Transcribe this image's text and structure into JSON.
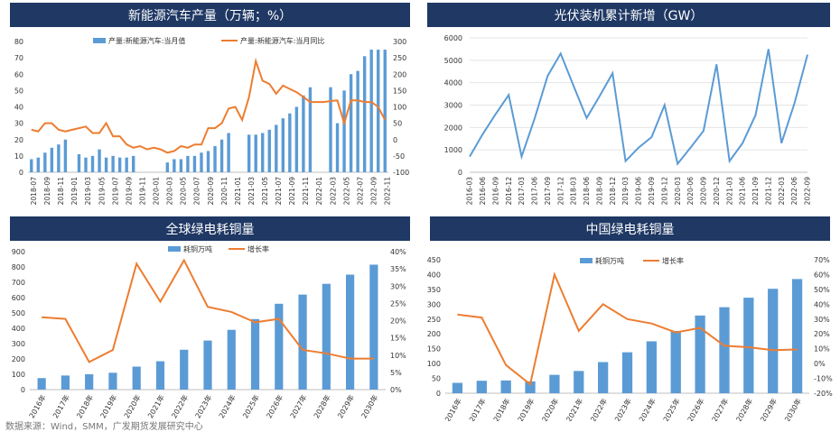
{
  "colors": {
    "bar": "#5b9bd5",
    "line": "#ed7d31",
    "banner": "#1f3864",
    "axis": "#bfbfbf"
  },
  "footer": "数据来源：Wind，SMM，广发期货发展研究中心",
  "chart_data": [
    {
      "type": "bar+line",
      "title": "新能源汽车产量（万辆；%）",
      "legend": [
        "产量:新能源汽车:当月值",
        "产量:新能源汽车:当月同比"
      ],
      "legend_position": "top",
      "x": [
        "2018-07",
        "2018-08",
        "2018-09",
        "2018-10",
        "2018-11",
        "2018-12",
        "2019-01",
        "2019-02",
        "2019-03",
        "2019-04",
        "2019-05",
        "2019-06",
        "2019-07",
        "2019-08",
        "2019-09",
        "2019-10",
        "2019-11",
        "2019-12",
        "2020-01",
        "2020-02",
        "2020-03",
        "2020-04",
        "2020-05",
        "2020-06",
        "2020-07",
        "2020-08",
        "2020-09",
        "2020-10",
        "2020-11",
        "2020-12",
        "2021-01",
        "2021-02",
        "2021-03",
        "2021-04",
        "2021-05",
        "2021-06",
        "2021-07",
        "2021-08",
        "2021-09",
        "2021-10",
        "2021-11",
        "2021-12",
        "2022-01",
        "2022-02",
        "2022-03",
        "2022-04",
        "2022-05",
        "2022-06",
        "2022-07",
        "2022-08",
        "2022-09",
        "2022-10",
        "2022-11"
      ],
      "x_tick_labels": [
        "2018-07",
        "2018-09",
        "2018-11",
        "2019-01",
        "2019-03",
        "2019-05",
        "2019-07",
        "2019-09",
        "2019-11",
        "2020-01",
        "2020-03",
        "2020-05",
        "2020-07",
        "2020-09",
        "2020-11",
        "2021-01",
        "2021-03",
        "2021-05",
        "2021-07",
        "2021-09",
        "2021-11",
        "2022-01",
        "2022-03",
        "2022-05",
        "2022-07",
        "2022-09",
        "2022-11"
      ],
      "bar_values": [
        8,
        9,
        12,
        15,
        17,
        20,
        null,
        11,
        9,
        10,
        14,
        9,
        10,
        9,
        9,
        10,
        null,
        null,
        null,
        null,
        6,
        8,
        8,
        10,
        10,
        12,
        13,
        16,
        20,
        24,
        null,
        null,
        23,
        23,
        24,
        26,
        29,
        33,
        36,
        40,
        47,
        52,
        null,
        null,
        52,
        30,
        50,
        60,
        62,
        71,
        75,
        75,
        75
      ],
      "line_values": [
        30,
        25,
        50,
        50,
        30,
        25,
        30,
        35,
        40,
        20,
        20,
        50,
        10,
        10,
        -15,
        -25,
        -20,
        -30,
        -25,
        -30,
        -40,
        -35,
        -20,
        -25,
        -15,
        -15,
        35,
        35,
        50,
        95,
        100,
        60,
        130,
        240,
        180,
        170,
        140,
        165,
        155,
        145,
        130,
        115,
        115,
        115,
        118,
        120,
        50,
        120,
        120,
        115,
        115,
        100,
        60
      ],
      "y_left_range": [
        0,
        80
      ],
      "y_left_ticks": [
        "0",
        "10",
        "20",
        "30",
        "40",
        "50",
        "60",
        "70",
        "80"
      ],
      "y_right_range": [
        -100,
        300
      ],
      "y_right_ticks": [
        "-100",
        "-50",
        "0",
        "50",
        "100",
        "150",
        "200",
        "250",
        "300"
      ],
      "grid": false
    },
    {
      "type": "line",
      "title": "光伏装机累计新增（GW）",
      "x": [
        "2016-03",
        "2016-06",
        "2016-09",
        "2016-12",
        "2017-03",
        "2017-06",
        "2017-09",
        "2017-12",
        "2018-03",
        "2018-06",
        "2018-09",
        "2018-12",
        "2019-03",
        "2019-06",
        "2019-09",
        "2019-12",
        "2020-03",
        "2020-06",
        "2020-09",
        "2020-12",
        "2021-03",
        "2021-06",
        "2021-09",
        "2021-12",
        "2022-03",
        "2022-06",
        "2022-09"
      ],
      "values": [
        700,
        1700,
        2600,
        3450,
        700,
        2400,
        4300,
        5300,
        3850,
        2420,
        3400,
        4420,
        500,
        1100,
        1570,
        3000,
        380,
        1100,
        1850,
        4820,
        500,
        1300,
        2550,
        5500,
        1300,
        3080,
        5250
      ],
      "y_range": [
        0,
        6000
      ],
      "y_ticks": [
        "0",
        "1000",
        "2000",
        "3000",
        "4000",
        "5000",
        "6000"
      ],
      "grid": true
    },
    {
      "type": "bar+line",
      "title": "全球绿电耗铜量",
      "legend": [
        "耗铜万吨",
        "增长率"
      ],
      "legend_position": "top",
      "categories": [
        "2016年",
        "2017年",
        "2018年",
        "2019年",
        "2020年",
        "2021年",
        "2022年",
        "2023年",
        "2024年",
        "2025年",
        "2026年",
        "2027年",
        "2028年",
        "2029年",
        "2030年"
      ],
      "bar_values": [
        75,
        92,
        100,
        110,
        150,
        185,
        260,
        320,
        390,
        460,
        560,
        620,
        690,
        750,
        815
      ],
      "line_values": [
        21,
        20.5,
        8,
        11.5,
        36.5,
        25.5,
        37.5,
        24,
        22.5,
        19.5,
        20.5,
        11.5,
        10.5,
        9,
        9
      ],
      "y_left_range": [
        0,
        900
      ],
      "y_left_ticks": [
        "0",
        "100",
        "200",
        "300",
        "400",
        "500",
        "600",
        "700",
        "800",
        "900"
      ],
      "y_right_range": [
        0,
        40
      ],
      "y_right_ticks": [
        "0%",
        "5%",
        "10%",
        "15%",
        "20%",
        "25%",
        "30%",
        "35%",
        "40%"
      ],
      "grid": false
    },
    {
      "type": "bar+line",
      "title": "中国绿电耗铜量",
      "legend": [
        "耗铜万吨",
        "增长率"
      ],
      "legend_position": "top",
      "categories": [
        "2016年",
        "2017年",
        "2018年",
        "2019年",
        "2020年",
        "2021年",
        "2022年",
        "2023年",
        "2024年",
        "2025年",
        "2026年",
        "2027年",
        "2028年",
        "2029年",
        "2030年"
      ],
      "bar_values": [
        35,
        42,
        43,
        40,
        62,
        75,
        105,
        138,
        175,
        210,
        262,
        290,
        322,
        352,
        385
      ],
      "line_values": [
        33,
        31,
        -1,
        -14,
        60,
        22,
        40,
        30,
        27,
        21,
        24,
        12,
        11,
        9,
        9.5
      ],
      "y_left_range": [
        0,
        450
      ],
      "y_left_ticks": [
        "0",
        "50",
        "100",
        "150",
        "200",
        "250",
        "300",
        "350",
        "400",
        "450"
      ],
      "y_right_range": [
        -20,
        70
      ],
      "y_right_ticks": [
        "-20%",
        "-10%",
        "0%",
        "10%",
        "20%",
        "30%",
        "40%",
        "50%",
        "60%",
        "70%"
      ],
      "grid": false
    }
  ]
}
